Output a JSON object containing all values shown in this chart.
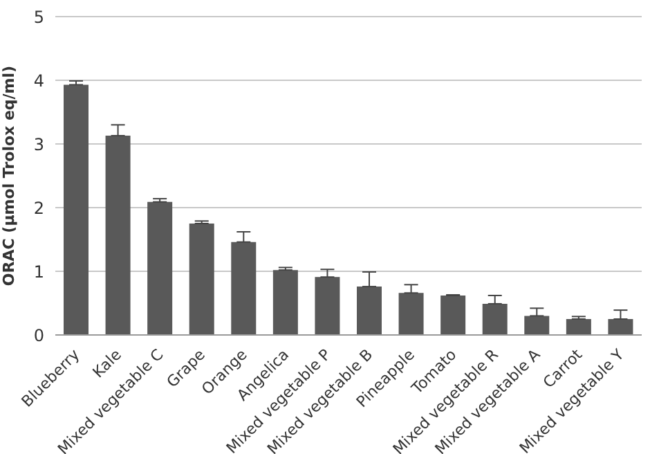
{
  "chart_data": {
    "type": "bar",
    "ylabel": "ORAC (μmol Trolox eq/ml)",
    "categories": [
      "Blueberry",
      "Kale",
      "Mixed vegetable C",
      "Grape",
      "Orange",
      "Angelica",
      "Mixed vegetable P",
      "Mixed vegetable B",
      "Pineapple",
      "Tomato",
      "Mixed vegetable R",
      "Mixed vegetable A",
      "Carrot",
      "Mixed vegetable Y"
    ],
    "values": [
      3.93,
      3.13,
      2.09,
      1.75,
      1.46,
      1.02,
      0.91,
      0.76,
      0.66,
      0.62,
      0.49,
      0.3,
      0.25,
      0.25
    ],
    "errors": [
      [
        3.93,
        3.99
      ],
      [
        3.13,
        3.3
      ],
      [
        2.09,
        2.14
      ],
      [
        1.75,
        1.79
      ],
      [
        1.46,
        1.62
      ],
      [
        1.02,
        1.06
      ],
      [
        0.91,
        1.03
      ],
      [
        0.76,
        0.99
      ],
      [
        0.66,
        0.79
      ],
      [
        0.62,
        0.63
      ],
      [
        0.49,
        0.62
      ],
      [
        0.3,
        0.42
      ],
      [
        0.25,
        0.29
      ],
      [
        0.25,
        0.39
      ]
    ],
    "color": "#595959",
    "ylim": [
      0,
      5
    ],
    "yticks": [
      0,
      1,
      2,
      3,
      4,
      5
    ],
    "grid": "y"
  }
}
